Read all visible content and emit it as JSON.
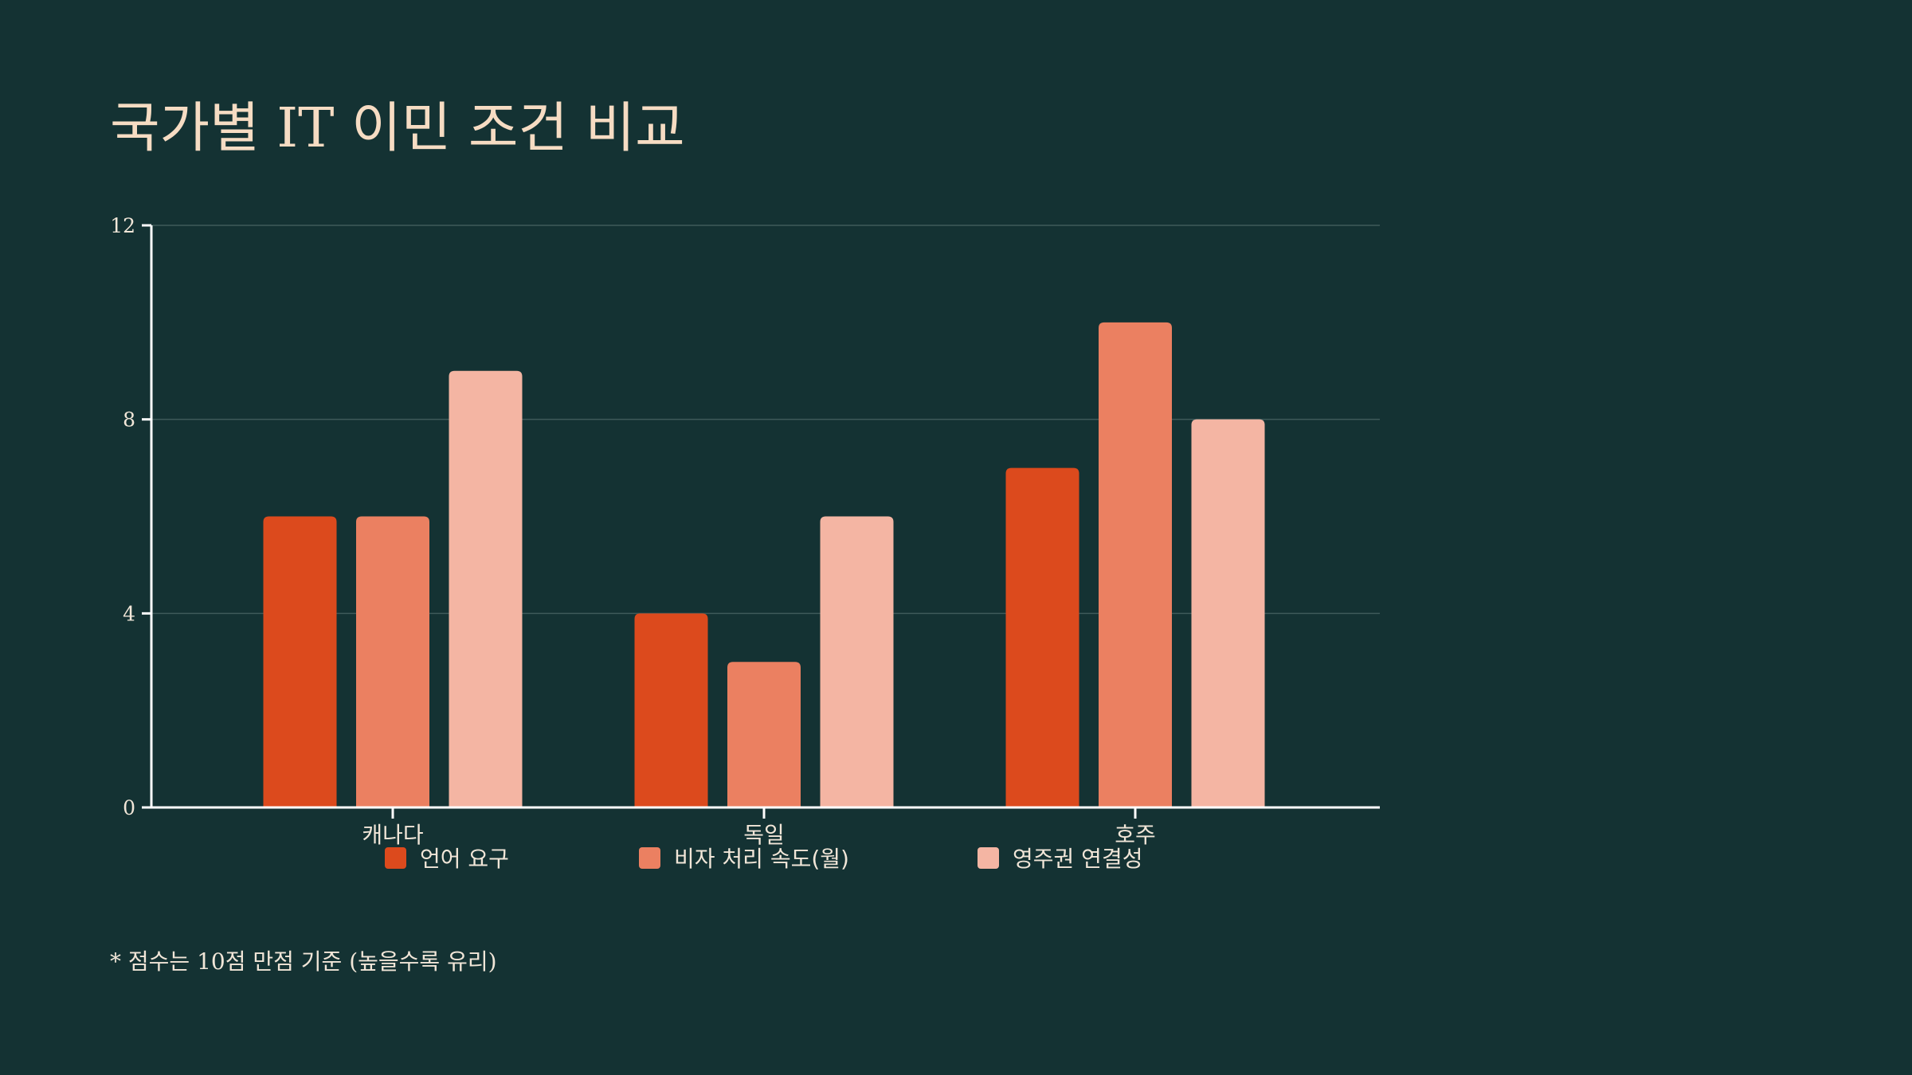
{
  "title": "국가별 IT 이민 조건 비교",
  "footnote": "* 점수는 10점 만점 기준 (높을수록 유리)",
  "colors": {
    "background": "#143233",
    "title": "#f6dcc3",
    "axis": "#ffffff",
    "grid": "#3e5a5a",
    "text": "#f1e6d8"
  },
  "chart_data": {
    "type": "bar",
    "categories": [
      "캐나다",
      "독일",
      "호주"
    ],
    "series": [
      {
        "name": "언어 요구",
        "color": "#dc4a1d",
        "values": [
          6,
          4,
          7
        ]
      },
      {
        "name": "비자 처리 속도(월)",
        "color": "#eb8061",
        "values": [
          6,
          3,
          10
        ]
      },
      {
        "name": "영주권 연결성",
        "color": "#f4b5a3",
        "values": [
          9,
          6,
          8
        ]
      }
    ],
    "ylim": [
      0,
      12
    ],
    "yticks": [
      0,
      4,
      8,
      12
    ],
    "grid": true,
    "legend": "bottom",
    "xlabel": "",
    "ylabel": ""
  }
}
